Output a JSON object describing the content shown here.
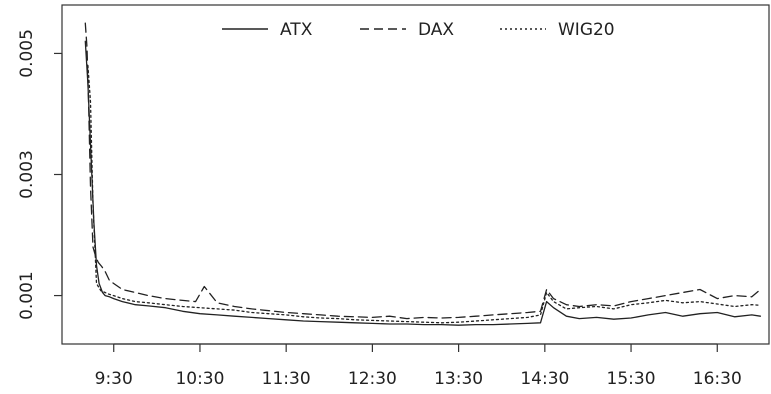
{
  "chart_data": {
    "type": "line",
    "title": "",
    "xlabel": "",
    "ylabel": "",
    "xlim": [
      8.9,
      17.1
    ],
    "ylim": [
      0.0002,
      0.0058
    ],
    "x_ticks": [
      9.5,
      10.5,
      11.5,
      12.5,
      13.5,
      14.5,
      15.5,
      16.5
    ],
    "x_tick_labels": [
      "9:30",
      "10:30",
      "11:30",
      "12:30",
      "13:30",
      "14:30",
      "15:30",
      "16:30"
    ],
    "y_ticks": [
      0.001,
      0.003,
      0.005
    ],
    "y_tick_labels": [
      "0.001",
      "0.003",
      "0.005"
    ],
    "grid": false,
    "legend_position": "top-center",
    "series": [
      {
        "name": "ATX",
        "line_style": "solid",
        "color": "#222222",
        "x": [
          9.17,
          9.2,
          9.23,
          9.27,
          9.3,
          9.33,
          9.37,
          9.4,
          9.45,
          9.5,
          9.6,
          9.75,
          9.9,
          10.1,
          10.3,
          10.5,
          10.7,
          10.9,
          11.1,
          11.3,
          11.5,
          11.7,
          11.9,
          12.1,
          12.3,
          12.5,
          12.7,
          12.9,
          13.1,
          13.3,
          13.5,
          13.7,
          13.9,
          14.1,
          14.3,
          14.45,
          14.52,
          14.6,
          14.75,
          14.9,
          15.1,
          15.3,
          15.5,
          15.7,
          15.9,
          16.1,
          16.3,
          16.5,
          16.7,
          16.9,
          17.0
        ],
        "y": [
          0.0052,
          0.0045,
          0.0035,
          0.0022,
          0.0015,
          0.0012,
          0.00105,
          0.001,
          0.00098,
          0.00095,
          0.0009,
          0.00085,
          0.00083,
          0.0008,
          0.00074,
          0.0007,
          0.00068,
          0.00066,
          0.00064,
          0.00062,
          0.0006,
          0.00058,
          0.00057,
          0.00056,
          0.00055,
          0.00054,
          0.00053,
          0.00053,
          0.00052,
          0.00052,
          0.00051,
          0.00052,
          0.00052,
          0.00053,
          0.00054,
          0.00055,
          0.0009,
          0.0008,
          0.00066,
          0.00062,
          0.00064,
          0.00061,
          0.00063,
          0.00068,
          0.00072,
          0.00066,
          0.0007,
          0.00072,
          0.00065,
          0.00068,
          0.00066
        ]
      },
      {
        "name": "DAX",
        "line_style": "dashed",
        "color": "#222222",
        "x": [
          9.17,
          9.19,
          9.21,
          9.23,
          9.26,
          9.29,
          9.32,
          9.36,
          9.4,
          9.45,
          9.5,
          9.6,
          9.75,
          9.9,
          10.1,
          10.3,
          10.45,
          10.55,
          10.7,
          10.9,
          11.1,
          11.3,
          11.5,
          11.7,
          11.9,
          12.1,
          12.3,
          12.5,
          12.7,
          12.9,
          13.1,
          13.3,
          13.5,
          13.7,
          13.9,
          14.1,
          14.3,
          14.45,
          14.52,
          14.6,
          14.75,
          14.9,
          15.1,
          15.3,
          15.5,
          15.7,
          15.9,
          16.1,
          16.3,
          16.5,
          16.7,
          16.9,
          17.0
        ],
        "y": [
          0.0055,
          0.0051,
          0.0041,
          0.0028,
          0.0018,
          0.00165,
          0.00155,
          0.00148,
          0.0014,
          0.00125,
          0.0012,
          0.0011,
          0.00105,
          0.001,
          0.00095,
          0.00092,
          0.0009,
          0.00115,
          0.00088,
          0.00082,
          0.00078,
          0.00075,
          0.00072,
          0.0007,
          0.00068,
          0.00066,
          0.00065,
          0.00064,
          0.00066,
          0.00062,
          0.00064,
          0.00063,
          0.00064,
          0.00066,
          0.00068,
          0.0007,
          0.00072,
          0.00074,
          0.0011,
          0.00095,
          0.00085,
          0.00082,
          0.00085,
          0.00083,
          0.0009,
          0.00095,
          0.001,
          0.00105,
          0.0011,
          0.00095,
          0.001,
          0.00098,
          0.0011
        ]
      },
      {
        "name": "WIG20",
        "line_style": "dotted",
        "color": "#222222",
        "x": [
          9.2,
          9.23,
          9.26,
          9.3,
          9.35,
          9.4,
          9.45,
          9.5,
          9.6,
          9.75,
          9.9,
          10.1,
          10.3,
          10.5,
          10.7,
          10.9,
          11.1,
          11.3,
          11.5,
          11.7,
          11.9,
          12.1,
          12.3,
          12.5,
          12.7,
          12.9,
          13.1,
          13.3,
          13.5,
          13.7,
          13.9,
          14.1,
          14.3,
          14.45,
          14.52,
          14.6,
          14.75,
          14.9,
          15.1,
          15.3,
          15.5,
          15.7,
          15.9,
          16.1,
          16.3,
          16.5,
          16.7,
          16.9,
          17.0
        ],
        "y": [
          0.0048,
          0.0042,
          0.0025,
          0.0012,
          0.00108,
          0.00105,
          0.00102,
          0.001,
          0.00095,
          0.0009,
          0.00088,
          0.00085,
          0.00082,
          0.0008,
          0.00078,
          0.00076,
          0.00072,
          0.0007,
          0.00068,
          0.00065,
          0.00063,
          0.00062,
          0.0006,
          0.00059,
          0.00058,
          0.00057,
          0.00056,
          0.00055,
          0.00056,
          0.00058,
          0.0006,
          0.00062,
          0.00064,
          0.00068,
          0.00105,
          0.0009,
          0.00078,
          0.0008,
          0.00082,
          0.00078,
          0.00085,
          0.00088,
          0.00092,
          0.00088,
          0.0009,
          0.00086,
          0.00082,
          0.00085,
          0.00084
        ]
      }
    ]
  }
}
